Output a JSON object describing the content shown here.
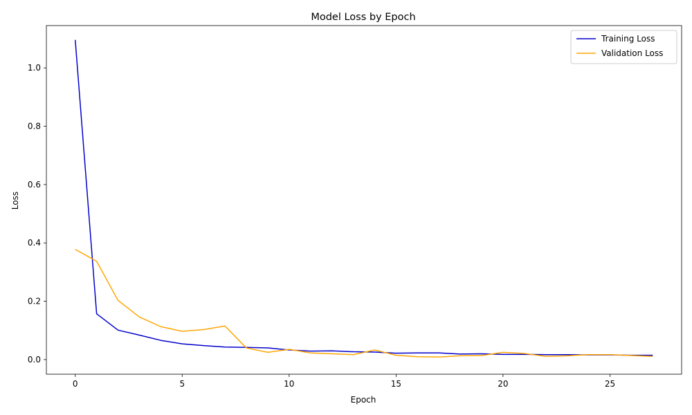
{
  "chart_data": {
    "type": "line",
    "title": "Model Loss by Epoch",
    "xlabel": "Epoch",
    "ylabel": "Loss",
    "xlim": [
      -1.35,
      28.35
    ],
    "ylim": [
      -0.05,
      1.145
    ],
    "xticks": [
      0,
      5,
      10,
      15,
      20,
      25
    ],
    "xtick_labels": [
      "0",
      "5",
      "10",
      "15",
      "20",
      "25"
    ],
    "yticks": [
      0.0,
      0.2,
      0.4,
      0.6,
      0.8,
      1.0
    ],
    "ytick_labels": [
      "0.0",
      "0.2",
      "0.4",
      "0.6",
      "0.8",
      "1.0"
    ],
    "grid": false,
    "legend_position": "top-right",
    "x": [
      0,
      1,
      2,
      3,
      4,
      5,
      6,
      7,
      8,
      9,
      10,
      11,
      12,
      13,
      14,
      15,
      16,
      17,
      18,
      19,
      20,
      21,
      22,
      23,
      24,
      25,
      26,
      27
    ],
    "series": [
      {
        "name": "Training Loss",
        "color": "#0000cc",
        "values": [
          1.096,
          0.157,
          0.101,
          0.084,
          0.066,
          0.054,
          0.048,
          0.043,
          0.042,
          0.04,
          0.033,
          0.029,
          0.03,
          0.027,
          0.026,
          0.022,
          0.023,
          0.023,
          0.019,
          0.02,
          0.018,
          0.018,
          0.017,
          0.017,
          0.016,
          0.016,
          0.015,
          0.015
        ]
      },
      {
        "name": "Validation Loss",
        "color": "#ffa500",
        "values": [
          0.378,
          0.337,
          0.203,
          0.146,
          0.113,
          0.097,
          0.103,
          0.115,
          0.04,
          0.025,
          0.035,
          0.023,
          0.02,
          0.017,
          0.033,
          0.015,
          0.01,
          0.009,
          0.013,
          0.014,
          0.025,
          0.021,
          0.011,
          0.013,
          0.017,
          0.017,
          0.014,
          0.011
        ]
      }
    ]
  }
}
